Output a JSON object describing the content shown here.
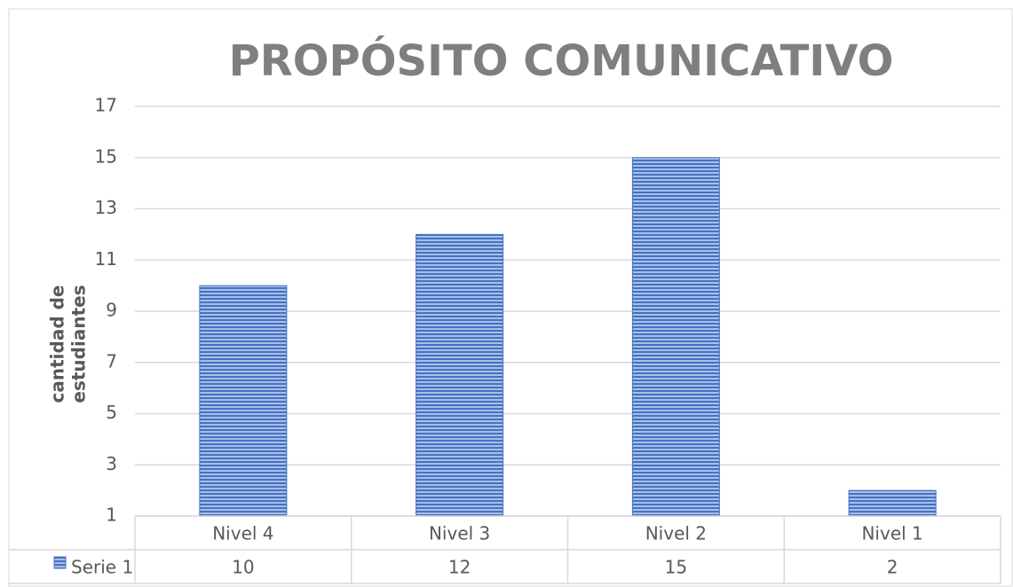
{
  "chart_data": {
    "type": "bar",
    "title": "PROPÓSITO COMUNICATIVO",
    "ylabel": [
      "cantidad de",
      "estudiantes"
    ],
    "categories": [
      "Nivel 4",
      "Nivel 3",
      "Nivel 2",
      "Nivel 1"
    ],
    "series": [
      {
        "name": "Serie 1",
        "color": "#4472c4",
        "values": [
          10,
          12,
          15,
          2
        ]
      }
    ],
    "ylim": [
      1,
      17
    ],
    "yticks": [
      1,
      3,
      5,
      7,
      9,
      11,
      13,
      15,
      17
    ],
    "grid": true,
    "data_table": true
  }
}
